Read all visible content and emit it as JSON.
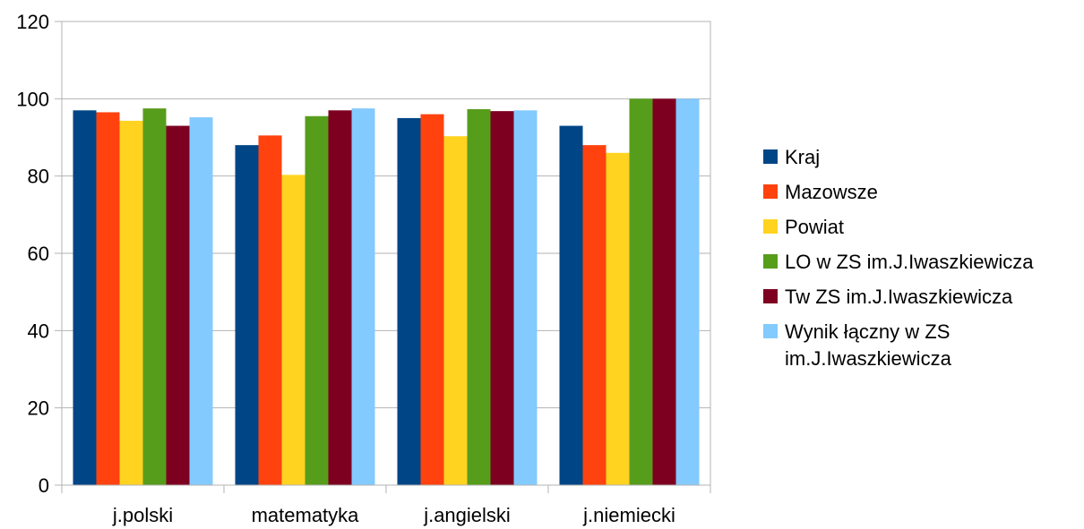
{
  "chart_data": {
    "type": "bar",
    "categories": [
      "j.polski",
      "matematyka",
      "j.angielski",
      "j.niemiecki"
    ],
    "series": [
      {
        "name": "Kraj",
        "color": "#004586",
        "values": [
          97,
          88,
          95,
          93
        ]
      },
      {
        "name": "Mazowsze",
        "color": "#ff420e",
        "values": [
          96.5,
          90.5,
          96,
          88
        ]
      },
      {
        "name": "Powiat",
        "color": "#ffd320",
        "values": [
          94.3,
          80.3,
          90.3,
          86
        ]
      },
      {
        "name": "LO w ZS im.J.Iwaszkiewicza",
        "color": "#579d1c",
        "values": [
          97.5,
          95.5,
          97.3,
          100
        ]
      },
      {
        "name": "Tw ZS im.J.Iwaszkiewicza",
        "color": "#7e0021",
        "values": [
          93,
          97,
          96.8,
          100
        ]
      },
      {
        "name": "Wynik łączny w ZS im.J.Iwaszkiewicza",
        "color": "#83caff",
        "values": [
          95.2,
          97.5,
          97,
          100
        ]
      }
    ],
    "ylim": [
      0,
      120
    ],
    "yticks": [
      0,
      20,
      40,
      60,
      80,
      100,
      120
    ],
    "grid": true,
    "legend": "right",
    "title": "",
    "xlabel": "",
    "ylabel": ""
  }
}
